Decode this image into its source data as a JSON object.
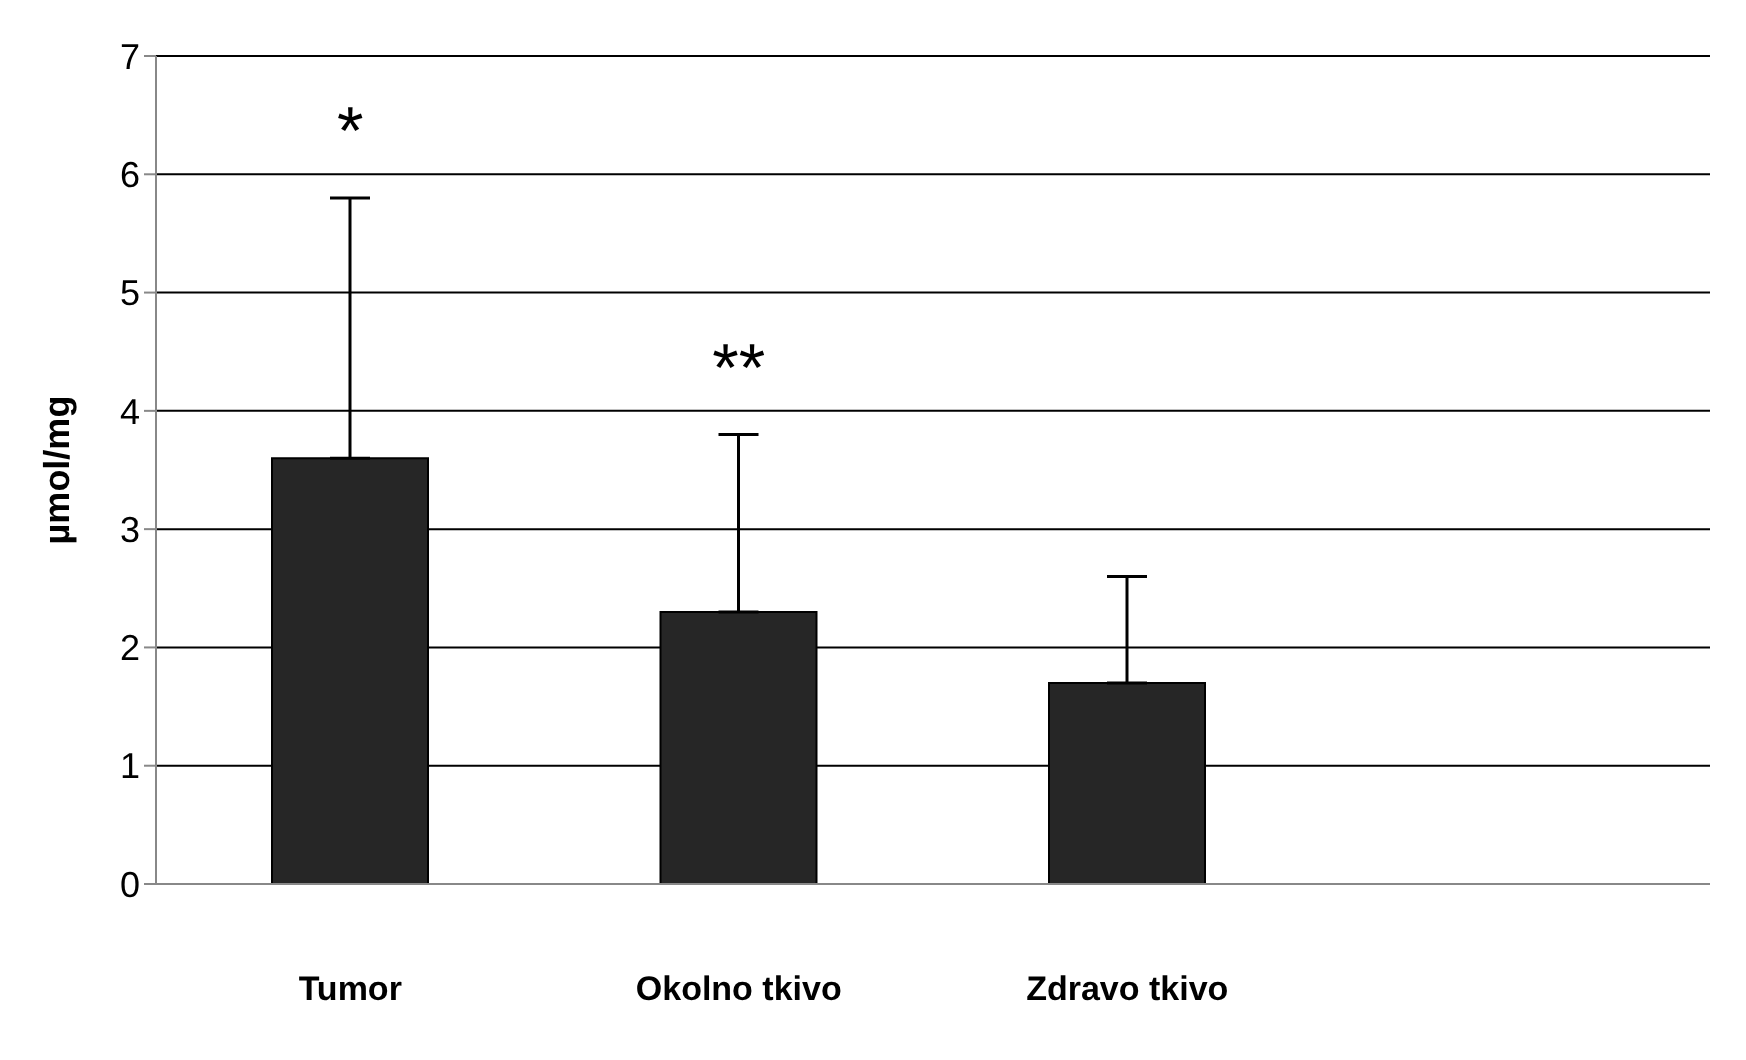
{
  "chart_data": {
    "type": "bar",
    "ylabel": "µmol/mg",
    "categories": [
      "Tumor",
      "Okolno tkivo",
      "Zdravo tkivo",
      null
    ],
    "values": [
      3.6,
      2.3,
      1.7,
      null
    ],
    "errors": [
      [
        3.6,
        5.8
      ],
      [
        2.3,
        3.8
      ],
      [
        1.7,
        2.6
      ],
      null
    ],
    "color": "#262626",
    "ylim": [
      0,
      7
    ],
    "yticks": [
      0,
      1,
      2,
      3,
      4,
      5,
      6,
      7
    ],
    "grid": "y",
    "legend": false,
    "annotations": [
      "*",
      "**"
    ]
  }
}
